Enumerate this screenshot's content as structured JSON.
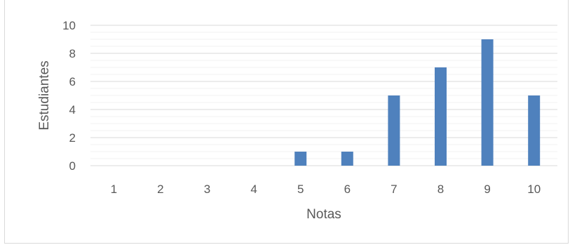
{
  "chart_data": {
    "type": "bar",
    "title": "",
    "categories": [
      "1",
      "2",
      "3",
      "4",
      "5",
      "6",
      "7",
      "8",
      "9",
      "10"
    ],
    "values": [
      0,
      0,
      0,
      0,
      1,
      1,
      5,
      7,
      9,
      5
    ],
    "xlabel": "Notas",
    "ylabel": "Estudiantes",
    "ylim": [
      0,
      10
    ],
    "yticks": [
      "0",
      "2",
      "4",
      "6",
      "8",
      "10"
    ],
    "grid": true,
    "legend": "none",
    "bar_color": "#4f81bd",
    "major_grid_color": "#d9d9d9",
    "minor_grid_color": "#f0f0f0"
  }
}
